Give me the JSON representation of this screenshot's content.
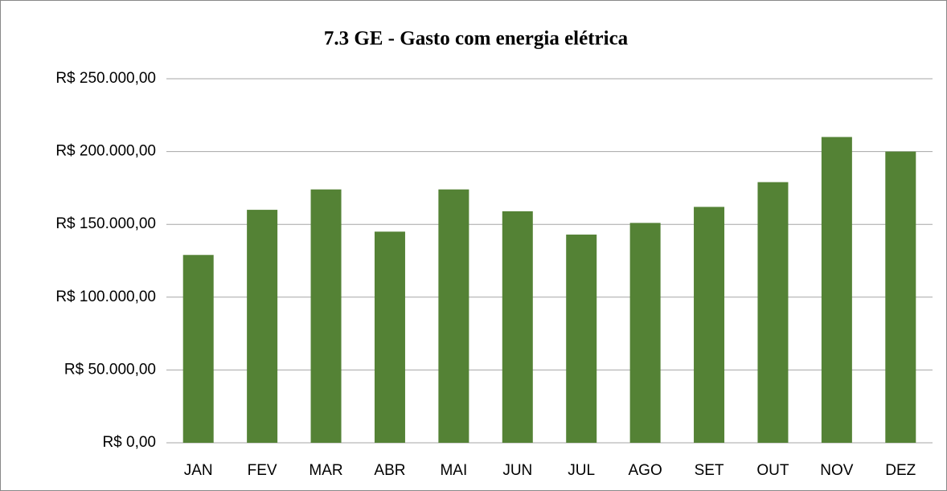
{
  "chart_data": {
    "type": "bar",
    "title": "7.3 GE - Gasto com energia elétrica",
    "categories": [
      "JAN",
      "FEV",
      "MAR",
      "ABR",
      "MAI",
      "JUN",
      "JUL",
      "AGO",
      "SET",
      "OUT",
      "NOV",
      "DEZ"
    ],
    "values": [
      129000,
      160000,
      174000,
      145000,
      174000,
      159000,
      143000,
      151000,
      162000,
      179000,
      210000,
      200000
    ],
    "color": "#548235",
    "ylim": [
      0,
      250000
    ],
    "yticks": [
      {
        "value": 0,
        "label": "R$ 0,00"
      },
      {
        "value": 50000,
        "label": "R$ 50.000,00"
      },
      {
        "value": 100000,
        "label": "R$ 100.000,00"
      },
      {
        "value": 150000,
        "label": "R$ 150.000,00"
      },
      {
        "value": 200000,
        "label": "R$ 200.000,00"
      },
      {
        "value": 250000,
        "label": "R$ 250.000,00"
      }
    ],
    "grid": true
  }
}
